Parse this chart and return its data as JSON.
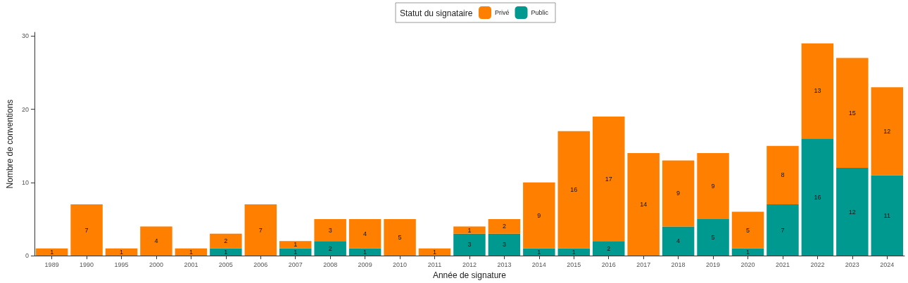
{
  "chart_data": {
    "type": "bar",
    "stacked": true,
    "legend_title": "Statut du signataire",
    "legend": "top",
    "xlabel": "Année de signature",
    "ylabel": "Nombre de conventions",
    "data_labels": true,
    "grid": false,
    "categories": [
      "1989",
      "1990",
      "1995",
      "2000",
      "2001",
      "2005",
      "2006",
      "2007",
      "2008",
      "2009",
      "2010",
      "2011",
      "2012",
      "2013",
      "2014",
      "2015",
      "2016",
      "2017",
      "2018",
      "2019",
      "2020",
      "2021",
      "2022",
      "2023",
      "2024"
    ],
    "ylim": [
      0,
      30.5
    ],
    "yticks": [
      0,
      10,
      20,
      30
    ],
    "series": [
      {
        "name": "Public",
        "color": "#009990",
        "values": [
          null,
          null,
          null,
          null,
          null,
          1,
          null,
          1,
          2,
          1,
          null,
          null,
          3,
          3,
          1,
          1,
          2,
          null,
          4,
          5,
          1,
          7,
          16,
          12,
          11
        ]
      },
      {
        "name": "Privé",
        "color": "#ff8000",
        "values": [
          1,
          7,
          1,
          4,
          1,
          2,
          7,
          1,
          3,
          4,
          5,
          1,
          1,
          2,
          9,
          16,
          17,
          14,
          9,
          9,
          5,
          8,
          13,
          15,
          12
        ]
      }
    ]
  }
}
